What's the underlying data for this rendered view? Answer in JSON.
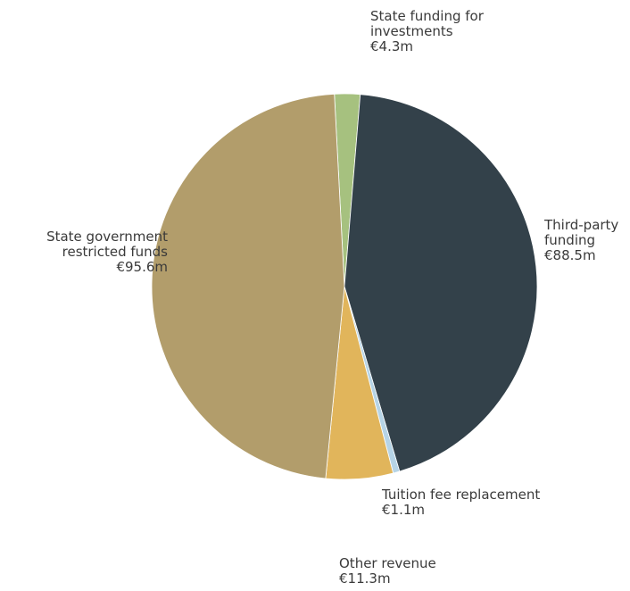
{
  "chart_data": {
    "type": "pie",
    "start_angle_deg": -3,
    "direction": "clockwise",
    "slices": [
      {
        "label": [
          "State funding for",
          "investments"
        ],
        "value_label": "€4.3m",
        "value": 4.3,
        "color": "#a6c17f"
      },
      {
        "label": [
          "Third-party",
          "funding"
        ],
        "value_label": "€88.5m",
        "value": 88.5,
        "color": "#33414a"
      },
      {
        "label": [
          "Tuition fee replacement"
        ],
        "value_label": "€1.1m",
        "value": 1.1,
        "color": "#b6d4e6"
      },
      {
        "label": [
          "Other revenue"
        ],
        "value_label": "€11.3m",
        "value": 11.3,
        "color": "#e1b55b"
      },
      {
        "label": [
          "State government",
          "restricted funds"
        ],
        "value_label": "€95.6m",
        "value": 95.6,
        "color": "#b29d6b"
      }
    ]
  }
}
